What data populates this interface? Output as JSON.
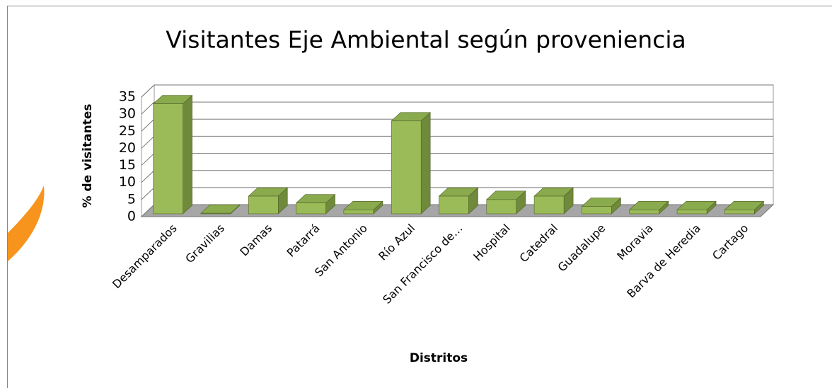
{
  "chart_data": {
    "type": "bar3d",
    "title": "Visitantes Eje Ambiental según proveniencia",
    "x_label": "Distritos",
    "y_label": "% de visitantes",
    "categories": [
      "Desamparados",
      "Gravilias",
      "Damas",
      "Patarrá",
      "San Antonio",
      "Río Azul",
      "San Francisco de…",
      "Hospital",
      "Catedral",
      "Guadalupe",
      "Moravia",
      "Barva de Heredia",
      "Cartago"
    ],
    "values": [
      33,
      1,
      6,
      4,
      2,
      28,
      6,
      5,
      6,
      3,
      2,
      2,
      2
    ],
    "color": "#9bbb59",
    "ylim": [
      0,
      35
    ],
    "yticks": [
      0,
      5,
      10,
      15,
      20,
      25,
      30,
      35
    ],
    "grid": true
  }
}
